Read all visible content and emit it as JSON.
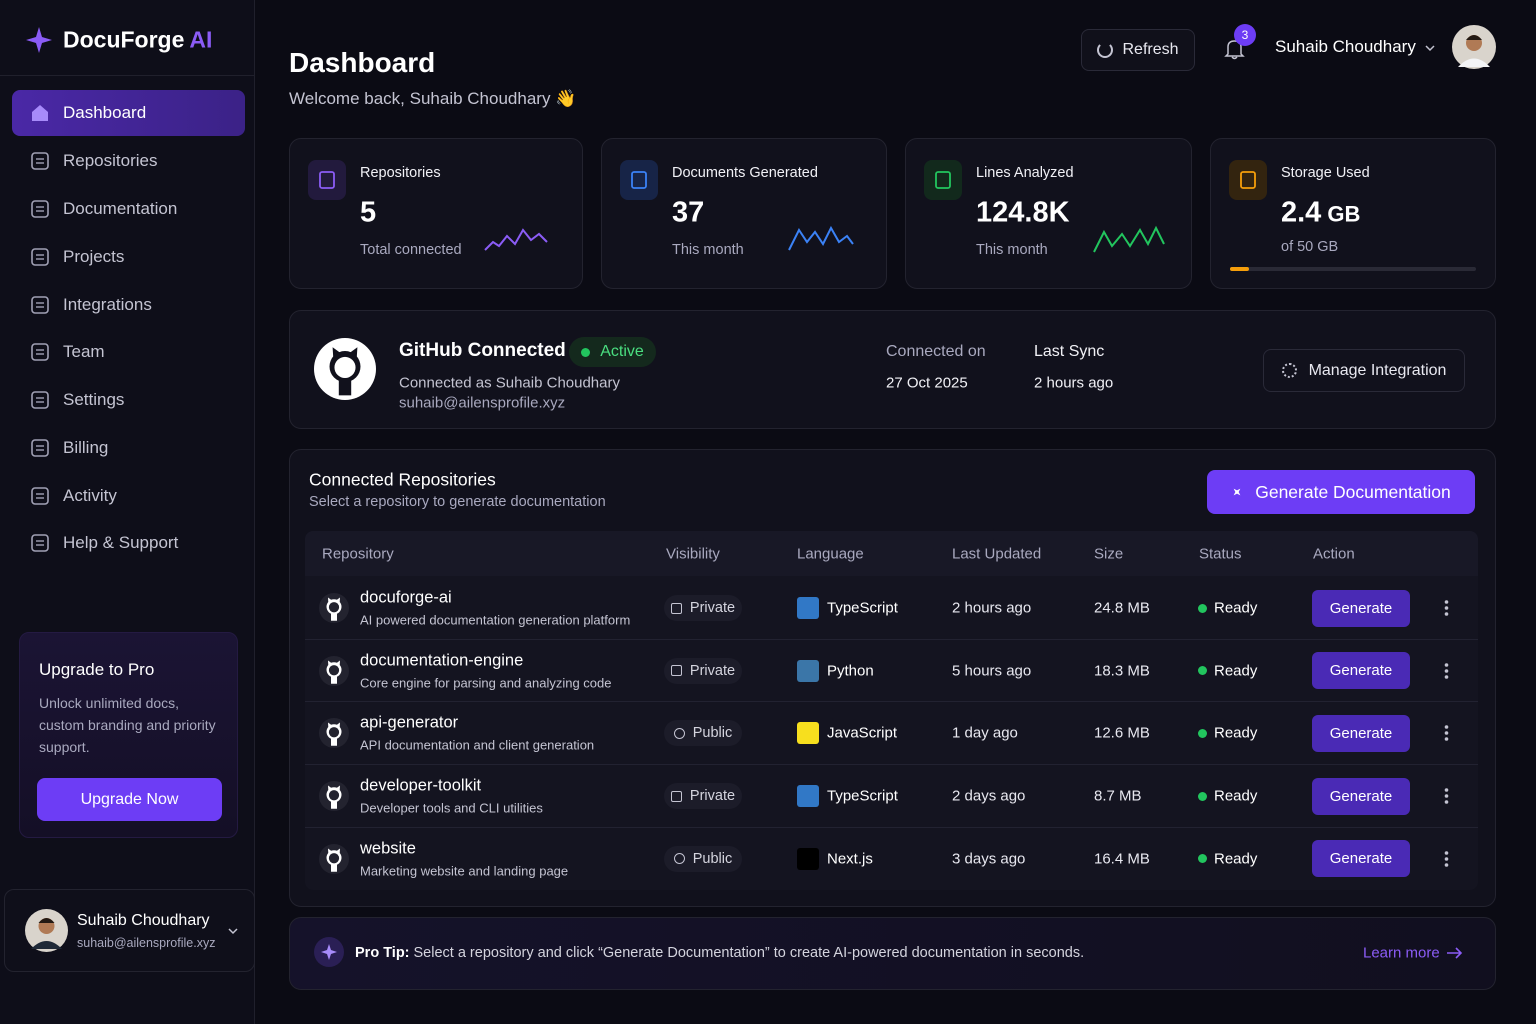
{
  "brand": {
    "name": "DocuForge",
    "suffix": "AI"
  },
  "nav": [
    "Dashboard",
    "Repositories",
    "Documentation",
    "Projects",
    "Integrations",
    "Team",
    "Settings",
    "Billing",
    "Activity",
    "Help & Support"
  ],
  "upgrade": {
    "title": "Upgrade to Pro",
    "text": "Unlock unlimited docs, custom branding and priority support.",
    "button": "Upgrade Now"
  },
  "user": {
    "name": "Suhaib Choudhary",
    "email": "suhaib@ailensprofile.xyz"
  },
  "header": {
    "title": "Dashboard",
    "welcome": "Welcome back, Suhaib Choudhary 👋",
    "refresh": "Refresh",
    "notifications": "3"
  },
  "stats": [
    {
      "label": "Repositories",
      "value": "5",
      "sub": "Total connected"
    },
    {
      "label": "Documents Generated",
      "value": "37",
      "sub": "This month"
    },
    {
      "label": "Lines Analyzed",
      "value": "124.8K",
      "sub": "This month"
    },
    {
      "label": "Storage Used",
      "value": "2.4",
      "unit": "GB",
      "sub": "of 50 GB"
    }
  ],
  "github": {
    "title": "GitHub Connected",
    "status": "Active",
    "connected_as": "Connected as Suhaib Choudhary",
    "email": "suhaib@ailensprofile.xyz",
    "connected_on_label": "Connected on",
    "connected_on": "27 Oct 2025",
    "last_sync_label": "Last Sync",
    "last_sync": "2 hours ago",
    "button": "Manage Integration"
  },
  "repos": {
    "title": "Connected Repositories",
    "subtitle": "Select a repository to generate documentation",
    "button": "Generate Documentation",
    "columns": [
      "Repository",
      "Visibility",
      "Language",
      "Last Updated",
      "Size",
      "Status",
      "Action"
    ],
    "rows": [
      {
        "name": "docuforge-ai",
        "description": "AI powered documentation generation platform",
        "visibility": "Private",
        "language": "TypeScript",
        "updated": "2 hours ago",
        "size": "24.8 MB",
        "status": "Ready",
        "action": "Generate"
      },
      {
        "name": "documentation-engine",
        "description": "Core engine for parsing and analyzing code",
        "visibility": "Private",
        "language": "Python",
        "updated": "5 hours ago",
        "size": "18.3 MB",
        "status": "Ready",
        "action": "Generate"
      },
      {
        "name": "api-generator",
        "description": "API documentation and client generation",
        "visibility": "Public",
        "language": "JavaScript",
        "updated": "1 day ago",
        "size": "12.6 MB",
        "status": "Ready",
        "action": "Generate"
      },
      {
        "name": "developer-toolkit",
        "description": "Developer tools and CLI utilities",
        "visibility": "Private",
        "language": "TypeScript",
        "updated": "2 days ago",
        "size": "8.7 MB",
        "status": "Ready",
        "action": "Generate"
      },
      {
        "name": "website",
        "description": "Marketing website and landing page",
        "visibility": "Public",
        "language": "Next.js",
        "updated": "3 days ago",
        "size": "16.4 MB",
        "status": "Ready",
        "action": "Generate"
      }
    ]
  },
  "tip": {
    "label": "Pro Tip:",
    "text": "Select a repository and click “Generate Documentation” to create AI-powered documentation in seconds.",
    "link": "Learn more"
  }
}
